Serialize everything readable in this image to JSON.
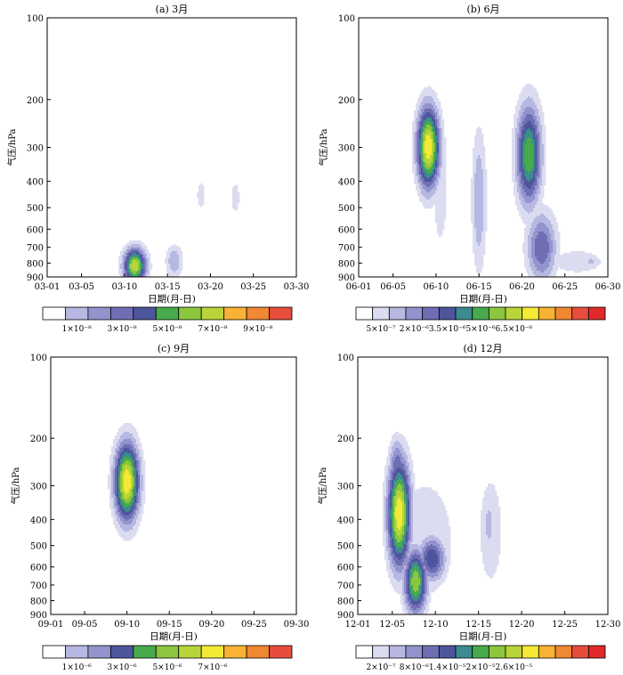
{
  "common": {
    "ylabel": "气压/hPa",
    "xlabel": "日期(月-日)",
    "yticks": [
      100,
      200,
      300,
      400,
      500,
      600,
      700,
      800,
      900
    ],
    "colormap": [
      "#ffffff",
      "#dcdcf1",
      "#b7b8e1",
      "#9394cd",
      "#6f6eb5",
      "#4d569c",
      "#3b8b8f",
      "#47aa4c",
      "#8cc63f",
      "#b9d43a",
      "#f4ea36",
      "#f9b233",
      "#f08732",
      "#e74c3c",
      "#e02a2a"
    ]
  },
  "chart_data": [
    {
      "type": "heatmap",
      "title": "(a) 3月",
      "month": "03",
      "xticks": [
        "03-01",
        "03-05",
        "03-10",
        "03-15",
        "03-20",
        "03-25",
        "03-30"
      ],
      "xlim": [
        1,
        30
      ],
      "ylim": [
        900,
        100
      ],
      "colorbar": {
        "n": 10,
        "labels": [
          "1×10⁻⁸",
          "3×10⁻⁸",
          "5×10⁻⁸",
          "7×10⁻⁸",
          "9×10⁻⁸"
        ],
        "colors": [
          "#ffffff",
          "#b7b8e1",
          "#9394cd",
          "#6f6eb5",
          "#4d569c",
          "#47aa4c",
          "#8cc63f",
          "#b9d43a",
          "#f9b233",
          "#f08732",
          "#e74c3c"
        ]
      },
      "blobs": [
        {
          "x": 11.2,
          "p": 820,
          "sx": 0.9,
          "sy": 90,
          "peak": 10
        },
        {
          "x": 15.8,
          "p": 790,
          "sx": 0.7,
          "sy": 80,
          "peak": 3
        },
        {
          "x": 18.9,
          "p": 450,
          "sx": 0.35,
          "sy": 40,
          "peak": 2
        },
        {
          "x": 22.9,
          "p": 460,
          "sx": 0.35,
          "sy": 45,
          "peak": 2
        }
      ]
    },
    {
      "type": "heatmap",
      "title": "(b) 6月",
      "month": "06",
      "xticks": [
        "06-01",
        "06-05",
        "06-10",
        "06-15",
        "06-20",
        "06-25",
        "06-30"
      ],
      "xlim": [
        1,
        30
      ],
      "ylim": [
        900,
        100
      ],
      "colorbar": {
        "n": 14,
        "labels": [
          "5×10⁻⁷",
          "2×10⁻⁶",
          "3.5×10⁻⁶",
          "5×10⁻⁶",
          "6.5×10⁻⁶"
        ],
        "colors": [
          "#ffffff",
          "#dcdcf1",
          "#b7b8e1",
          "#9394cd",
          "#6f6eb5",
          "#4d569c",
          "#3b8b8f",
          "#47aa4c",
          "#8cc63f",
          "#b9d43a",
          "#f4ea36",
          "#f9b233",
          "#f08732",
          "#e74c3c",
          "#e02a2a"
        ]
      },
      "blobs": [
        {
          "x": 9.1,
          "p": 300,
          "sx": 0.9,
          "sy": 80,
          "peak": 11
        },
        {
          "x": 10.5,
          "p": 420,
          "sx": 0.6,
          "sy": 180,
          "peak": 2
        },
        {
          "x": 15.0,
          "p": 470,
          "sx": 0.6,
          "sy": 250,
          "peak": 3
        },
        {
          "x": 20.8,
          "p": 320,
          "sx": 1.0,
          "sy": 110,
          "peak": 8
        },
        {
          "x": 22.3,
          "p": 700,
          "sx": 1.2,
          "sy": 160,
          "peak": 5
        },
        {
          "x": 21.5,
          "p": 500,
          "sx": 0.5,
          "sy": 250,
          "peak": 2
        },
        {
          "x": 26.5,
          "p": 790,
          "sx": 2.2,
          "sy": 60,
          "peak": 2
        },
        {
          "x": 28.0,
          "p": 790,
          "sx": 0.4,
          "sy": 20,
          "peak": 3
        }
      ]
    },
    {
      "type": "heatmap",
      "title": "(c) 9月",
      "month": "09",
      "xticks": [
        "09-01",
        "09-05",
        "09-10",
        "09-15",
        "09-20",
        "09-25",
        "09-30"
      ],
      "xlim": [
        1,
        30
      ],
      "ylim": [
        900,
        100
      ],
      "colorbar": {
        "n": 10,
        "labels": [
          "1×10⁻⁶",
          "3×10⁻⁶",
          "5×10⁻⁶",
          "7×10⁻⁶"
        ],
        "colors": [
          "#ffffff",
          "#b7b8e1",
          "#9394cd",
          "#4d569c",
          "#47aa4c",
          "#8cc63f",
          "#b9d43a",
          "#f4ea36",
          "#f9b233",
          "#f08732",
          "#e74c3c"
        ]
      },
      "blobs": [
        {
          "x": 10.0,
          "p": 290,
          "sx": 1.0,
          "sy": 75,
          "peak": 11
        },
        {
          "x": 9.9,
          "p": 380,
          "sx": 0.7,
          "sy": 80,
          "peak": 2
        }
      ]
    },
    {
      "type": "heatmap",
      "title": "(d) 12月",
      "month": "12",
      "xticks": [
        "12-01",
        "12-05",
        "12-10",
        "12-15",
        "12-20",
        "12-25",
        "12-30"
      ],
      "xlim": [
        1,
        30
      ],
      "ylim": [
        900,
        100
      ],
      "colorbar": {
        "n": 14,
        "labels": [
          "2×10⁻⁷",
          "8×10⁻⁶",
          "1.4×10⁻⁵",
          "2×10⁻⁵",
          "2.6×10⁻⁵"
        ],
        "colors": [
          "#ffffff",
          "#dcdcf1",
          "#b7b8e1",
          "#9394cd",
          "#6f6eb5",
          "#4d569c",
          "#3b8b8f",
          "#47aa4c",
          "#8cc63f",
          "#b9d43a",
          "#f4ea36",
          "#f9b233",
          "#f08732",
          "#e74c3c",
          "#e02a2a"
        ]
      },
      "blobs": [
        {
          "x": 5.8,
          "p": 380,
          "sx": 0.9,
          "sy": 140,
          "peak": 11
        },
        {
          "x": 5.6,
          "p": 260,
          "sx": 0.7,
          "sy": 50,
          "peak": 5
        },
        {
          "x": 7.7,
          "p": 680,
          "sx": 0.9,
          "sy": 140,
          "peak": 9
        },
        {
          "x": 9.6,
          "p": 560,
          "sx": 1.1,
          "sy": 80,
          "peak": 6
        },
        {
          "x": 8.8,
          "p": 480,
          "sx": 2.5,
          "sy": 230,
          "peak": 2
        },
        {
          "x": 16.4,
          "p": 440,
          "sx": 1.0,
          "sy": 180,
          "peak": 2
        },
        {
          "x": 16.2,
          "p": 420,
          "sx": 0.4,
          "sy": 60,
          "peak": 3
        }
      ]
    }
  ]
}
